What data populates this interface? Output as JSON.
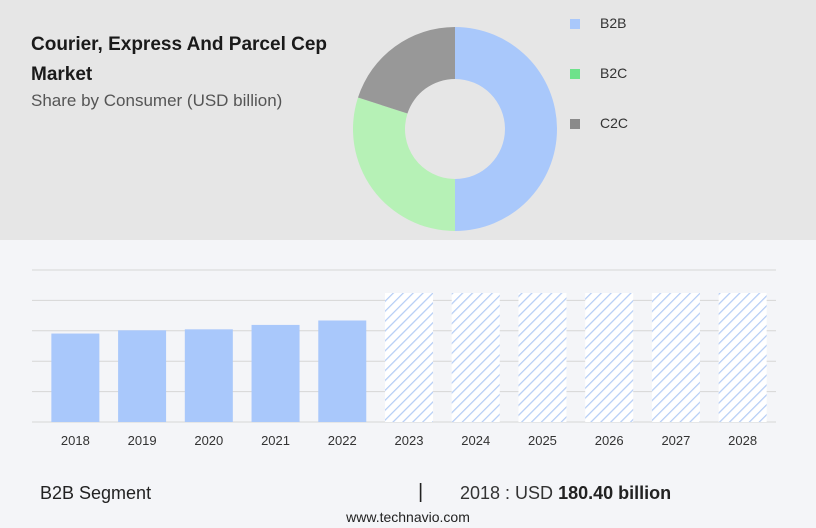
{
  "header": {
    "title": "Courier, Express And Parcel Cep Market",
    "subtitle": "Share by Consumer (USD billion)"
  },
  "chart_data": [
    {
      "type": "pie",
      "donut": true,
      "labels": [
        "B2B",
        "B2C",
        "C2C"
      ],
      "values": [
        50,
        30,
        20
      ],
      "colors": [
        "#a9c8fb",
        "#b6f1b6",
        "#989898"
      ],
      "legend": {
        "position": "right",
        "items": [
          {
            "label": "B2B",
            "color": "#a9c8fb"
          },
          {
            "label": "B2C",
            "color": "#6ee28b"
          },
          {
            "label": "C2C",
            "color": "#8a8a8a"
          }
        ]
      }
    },
    {
      "type": "bar",
      "categories": [
        "2018",
        "2019",
        "2020",
        "2021",
        "2022",
        "2023",
        "2024",
        "2025",
        "2026",
        "2027",
        "2028"
      ],
      "values": [
        180.4,
        187,
        189,
        198,
        207,
        null,
        null,
        null,
        null,
        null,
        null
      ],
      "forecast_categories": [
        "2023",
        "2024",
        "2025",
        "2026",
        "2027",
        "2028"
      ],
      "forecast_style": "hatched",
      "ylim": [
        0,
        310
      ],
      "grid": true,
      "bar_color": "#a9c8fb",
      "hatch_color": "#b5cdf5"
    }
  ],
  "footer": {
    "segment": "B2B Segment",
    "separator": "|",
    "year_label": "2018 : USD ",
    "value_label": "180.40 billion",
    "source": "www.technavio.com"
  }
}
